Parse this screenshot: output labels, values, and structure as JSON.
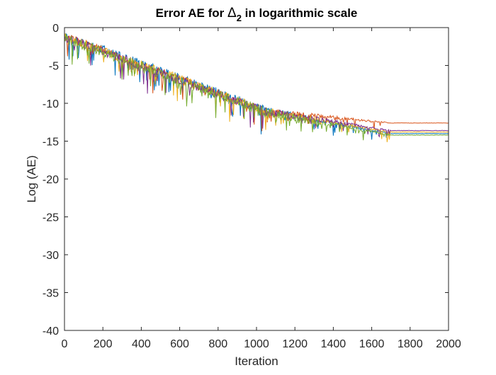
{
  "chart_data": {
    "type": "line",
    "title_parts": {
      "prefix": "Error AE for ",
      "symbol": "Δ",
      "subscript": "2",
      "suffix": " in logarithmic scale"
    },
    "xlabel": "Iteration",
    "ylabel": "Log (AE)",
    "xlim": [
      0,
      2000
    ],
    "ylim": [
      -40,
      0
    ],
    "xticks": [
      0,
      200,
      400,
      600,
      800,
      1000,
      1200,
      1400,
      1600,
      1800,
      2000
    ],
    "yticks": [
      0,
      -5,
      -10,
      -15,
      -20,
      -25,
      -30,
      -35,
      -40
    ],
    "grid": false,
    "legend": "none",
    "box": true,
    "series": [
      {
        "color": "#0072BD",
        "start": -1.0,
        "end": -14.0,
        "ripple": 1.2
      },
      {
        "color": "#D95319",
        "start": -1.1,
        "end": -12.6,
        "ripple": 1.0
      },
      {
        "color": "#EDB120",
        "start": -1.2,
        "end": -13.8,
        "ripple": 1.3
      },
      {
        "color": "#7E2F8E",
        "start": -1.3,
        "end": -13.6,
        "ripple": 1.2
      },
      {
        "color": "#77AC30",
        "start": -1.4,
        "end": -14.2,
        "ripple": 1.4
      }
    ]
  }
}
